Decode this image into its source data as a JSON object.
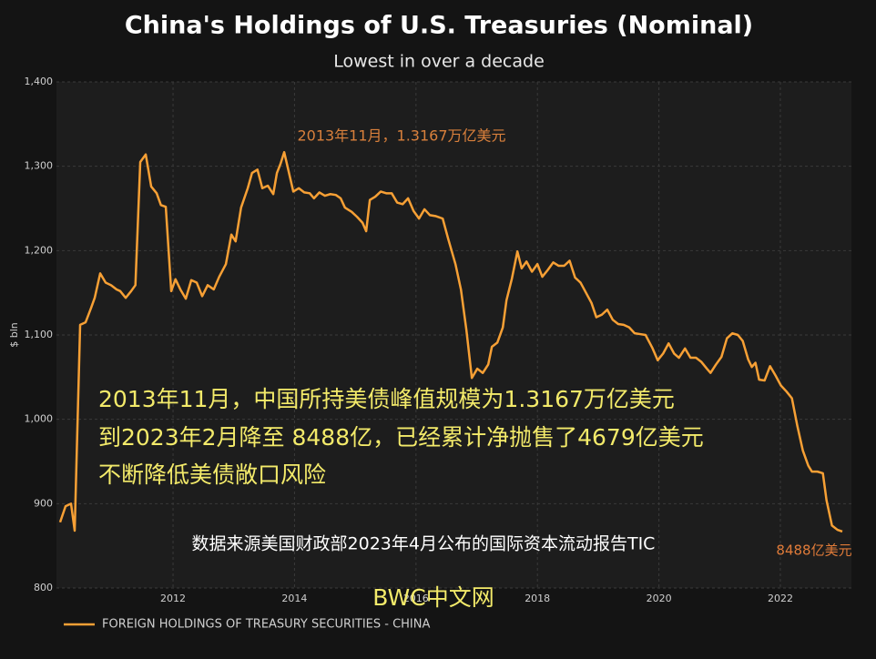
{
  "chart_data": {
    "type": "line",
    "title": "China's Holdings of U.S. Treasuries (Nominal)",
    "subtitle": "Lowest in over a decade",
    "y_label": "$ bln",
    "xlim": [
      2010.08,
      2023.17
    ],
    "xticks": [
      2012,
      2014,
      2016,
      2018,
      2020,
      2022
    ],
    "ylim": [
      800,
      1400
    ],
    "yticks": [
      800,
      900,
      {
        "value": 1000,
        "label": "1,000"
      },
      {
        "value": 1100,
        "label": "1,100"
      },
      {
        "value": 1200,
        "label": "1,200"
      },
      {
        "value": 1300,
        "label": "1,300"
      },
      {
        "value": 1400,
        "label": "1,400"
      }
    ],
    "grid": true,
    "legend": "bottom-left",
    "series": [
      {
        "name": "FOREIGN HOLDINGS OF TREASURY SECURITIES - CHINA",
        "color": "#f7a035",
        "x": [
          2010.14,
          2010.23,
          2010.32,
          2010.38,
          2010.47,
          2010.56,
          2010.65,
          2010.71,
          2010.8,
          2010.89,
          2010.98,
          2011.07,
          2011.13,
          2011.22,
          2011.31,
          2011.38,
          2011.46,
          2011.55,
          2011.64,
          2011.73,
          2011.8,
          2011.88,
          2011.97,
          2012.04,
          2012.12,
          2012.21,
          2012.3,
          2012.39,
          2012.48,
          2012.57,
          2012.67,
          2012.76,
          2012.87,
          2012.96,
          2013.03,
          2013.12,
          2013.23,
          2013.3,
          2013.39,
          2013.47,
          2013.56,
          2013.65,
          2013.71,
          2013.77,
          2013.83,
          2013.98,
          2014.07,
          2014.16,
          2014.25,
          2014.32,
          2014.41,
          2014.5,
          2014.59,
          2014.68,
          2014.76,
          2014.83,
          2014.94,
          2015.03,
          2015.12,
          2015.18,
          2015.24,
          2015.33,
          2015.42,
          2015.51,
          2015.6,
          2015.69,
          2015.78,
          2015.87,
          2015.96,
          2016.05,
          2016.14,
          2016.23,
          2016.32,
          2016.44,
          2016.53,
          2016.65,
          2016.74,
          2016.83,
          2016.92,
          2017.01,
          2017.1,
          2017.19,
          2017.25,
          2017.34,
          2017.43,
          2017.49,
          2017.58,
          2017.67,
          2017.74,
          2017.82,
          2017.91,
          2018.0,
          2018.08,
          2018.17,
          2018.26,
          2018.35,
          2018.44,
          2018.53,
          2018.62,
          2018.71,
          2018.8,
          2018.89,
          2018.97,
          2019.06,
          2019.15,
          2019.24,
          2019.33,
          2019.42,
          2019.51,
          2019.6,
          2019.69,
          2019.78,
          2019.89,
          2019.98,
          2020.07,
          2020.16,
          2020.25,
          2020.33,
          2020.43,
          2020.52,
          2020.61,
          2020.7,
          2020.79,
          2020.85,
          2020.94,
          2021.03,
          2021.12,
          2021.21,
          2021.3,
          2021.38,
          2021.47,
          2021.53,
          2021.59,
          2021.65,
          2021.74,
          2021.83,
          2021.92,
          2022.01,
          2022.1,
          2022.19,
          2022.28,
          2022.37,
          2022.46,
          2022.52,
          2022.61,
          2022.7,
          2022.76,
          2022.85,
          2022.94,
          2023.02
        ],
        "values": [
          878,
          897,
          900,
          868,
          1112,
          1115,
          1132,
          1144,
          1173,
          1162,
          1159,
          1154,
          1152,
          1144,
          1152,
          1159,
          1305,
          1314,
          1276,
          1268,
          1254,
          1252,
          1152,
          1166,
          1154,
          1143,
          1165,
          1162,
          1146,
          1159,
          1154,
          1169,
          1184,
          1219,
          1211,
          1251,
          1274,
          1292,
          1296,
          1274,
          1277,
          1267,
          1292,
          1303,
          1316.7,
          1270,
          1274,
          1269,
          1268,
          1262,
          1269,
          1265,
          1267,
          1266,
          1262,
          1251,
          1246,
          1240,
          1233,
          1223,
          1260,
          1264,
          1270,
          1268,
          1268,
          1257,
          1255,
          1262,
          1247,
          1238,
          1249,
          1242,
          1241,
          1238,
          1214,
          1184,
          1154,
          1106,
          1049,
          1060,
          1055,
          1065,
          1086,
          1091,
          1109,
          1141,
          1167,
          1199,
          1179,
          1187,
          1175,
          1184,
          1169,
          1177,
          1186,
          1182,
          1182,
          1188,
          1168,
          1162,
          1150,
          1138,
          1121,
          1124,
          1130,
          1118,
          1113,
          1112,
          1109,
          1102,
          1101,
          1100,
          1085,
          1070,
          1078,
          1090,
          1078,
          1073,
          1084,
          1073,
          1073,
          1068,
          1060,
          1055,
          1065,
          1074,
          1096,
          1102,
          1100,
          1093,
          1071,
          1062,
          1067,
          1047,
          1046,
          1063,
          1052,
          1040,
          1033,
          1025,
          992,
          963,
          945,
          938,
          938,
          936,
          904,
          874,
          869,
          867
        ]
      }
    ],
    "annotations": [
      "2013年11月，1.3167万亿美元",
      "2013年11月，中国所持美债峰值规模为1.3167万亿美元",
      "到2023年2月降至 8488亿，已经累计净抛售了4679亿美元",
      "不断降低美债敞口风险",
      "数据来源美国财政部2023年4月公布的国际资本流动报告TIC",
      "8488亿美元",
      "BWC中文网"
    ]
  }
}
